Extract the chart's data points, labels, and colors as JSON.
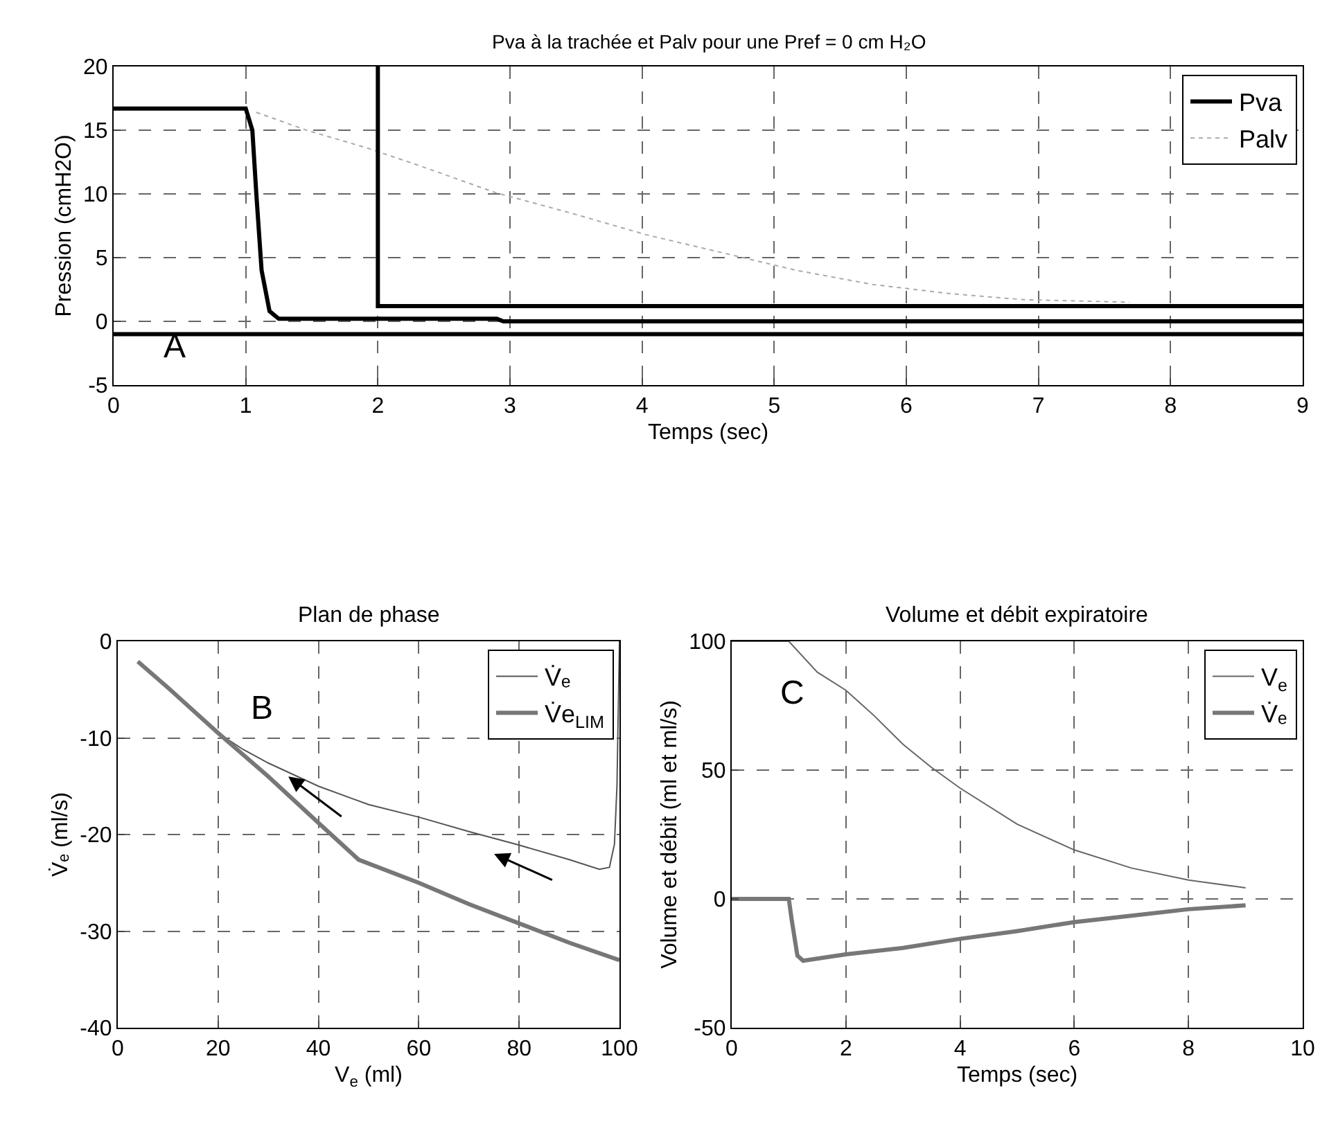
{
  "chart_data": [
    {
      "type": "line",
      "title": "Pva à la trachée et Palv pour une Pref = 0 cm H₂O",
      "xlabel": "Temps (sec)",
      "ylabel": "Pression (cmH2O)",
      "xlim": [
        0,
        9
      ],
      "xticks": [
        0,
        1,
        2,
        3,
        4,
        5,
        6,
        7,
        8,
        9
      ],
      "ylim": [
        -5,
        20
      ],
      "yticks": [
        -5,
        0,
        5,
        10,
        15,
        20
      ],
      "grid": true,
      "legend": "top right",
      "annotations": [
        "A"
      ],
      "ref_lines": [
        {
          "axis": "y",
          "value": -1,
          "color": "#000000"
        }
      ],
      "series": [
        {
          "name": "Pva",
          "color": "#000000",
          "x": [
            0,
            1,
            1.05,
            1.08,
            1.12,
            1.18,
            1.25,
            2.9,
            2.95,
            9
          ],
          "values": [
            16.7,
            16.7,
            15,
            10,
            4,
            0.8,
            0.2,
            0.2,
            0,
            0
          ]
        },
        {
          "name": "Palv",
          "color": "#aaaaaa",
          "line_style": "dotted",
          "x": [
            1.08,
            1.46,
            1.92,
            2.32,
            2.89,
            3.46,
            4.03,
            4.6,
            5.17,
            5.74,
            6.31,
            6.89,
            7.69
          ],
          "values": [
            16.4,
            15,
            13.6,
            12.2,
            10.1,
            8.5,
            6.8,
            5.4,
            4,
            2.9,
            2.2,
            1.7,
            1.5
          ]
        },
        {
          "color": "#000000",
          "x": [
            2,
            2,
            9
          ],
          "values": [
            20,
            1.2,
            1.2
          ]
        }
      ]
    },
    {
      "type": "line",
      "title": "Plan de phase",
      "xlabel": "V$_{e}$ (ml)",
      "ylabel": "V̇ₑ (ml/s)",
      "xlim": [
        0,
        100
      ],
      "xticks": [
        0,
        20,
        40,
        60,
        80,
        100
      ],
      "ylim": [
        -40,
        0
      ],
      "yticks": [
        -40,
        -30,
        -20,
        -10,
        0
      ],
      "grid": true,
      "legend": "top right",
      "annotations": [
        "B"
      ],
      "series": [
        {
          "name": "V̇ₑ",
          "color": "#555555",
          "x": [
            4,
            10,
            20,
            25,
            30,
            40,
            50,
            60,
            70,
            80,
            90,
            96,
            98,
            99,
            99.5,
            100
          ],
          "values": [
            -2.1,
            -4.8,
            -9.5,
            -11.2,
            -12.6,
            -15,
            -16.9,
            -18.2,
            -19.7,
            -21.1,
            -22.6,
            -23.6,
            -23.4,
            -21,
            -15,
            0
          ]
        },
        {
          "name": "V̇e$_{LIM}$",
          "color": "#777777",
          "x": [
            4,
            10,
            20,
            30,
            40,
            48,
            60,
            70,
            80,
            90,
            100
          ],
          "values": [
            -2.1,
            -4.8,
            -9.5,
            -14,
            -18.8,
            -22.6,
            -25,
            -27.2,
            -29.2,
            -31.2,
            -33
          ]
        }
      ]
    },
    {
      "type": "line",
      "title": "Volume et débit expiratoire",
      "xlabel": "Temps (sec)",
      "ylabel": "Volume et débit (ml et ml/s)",
      "xlim": [
        0,
        10
      ],
      "xticks": [
        0,
        2,
        4,
        6,
        8,
        10
      ],
      "ylim": [
        -50,
        100
      ],
      "yticks": [
        -50,
        0,
        50,
        100
      ],
      "grid": true,
      "legend": "top right",
      "annotations": [
        "C"
      ],
      "series": [
        {
          "name": "V$_{e}$",
          "color": "#666666",
          "x": [
            0,
            1,
            1.5,
            2,
            2.5,
            3,
            3.5,
            4,
            5,
            6,
            7,
            8,
            9
          ],
          "values": [
            100,
            100,
            88,
            81,
            71,
            60,
            51,
            43,
            29,
            19,
            12,
            7.3,
            4.3
          ]
        },
        {
          "name": "V̇ₑ",
          "color": "#777777",
          "x": [
            0,
            1,
            1.05,
            1.15,
            1.25,
            2,
            3,
            4,
            5,
            6,
            7,
            8,
            9
          ],
          "values": [
            0,
            0,
            -8,
            -22,
            -24,
            -21.5,
            -19,
            -15.5,
            -12.5,
            -9,
            -6.5,
            -4,
            -2.5
          ]
        }
      ]
    }
  ]
}
